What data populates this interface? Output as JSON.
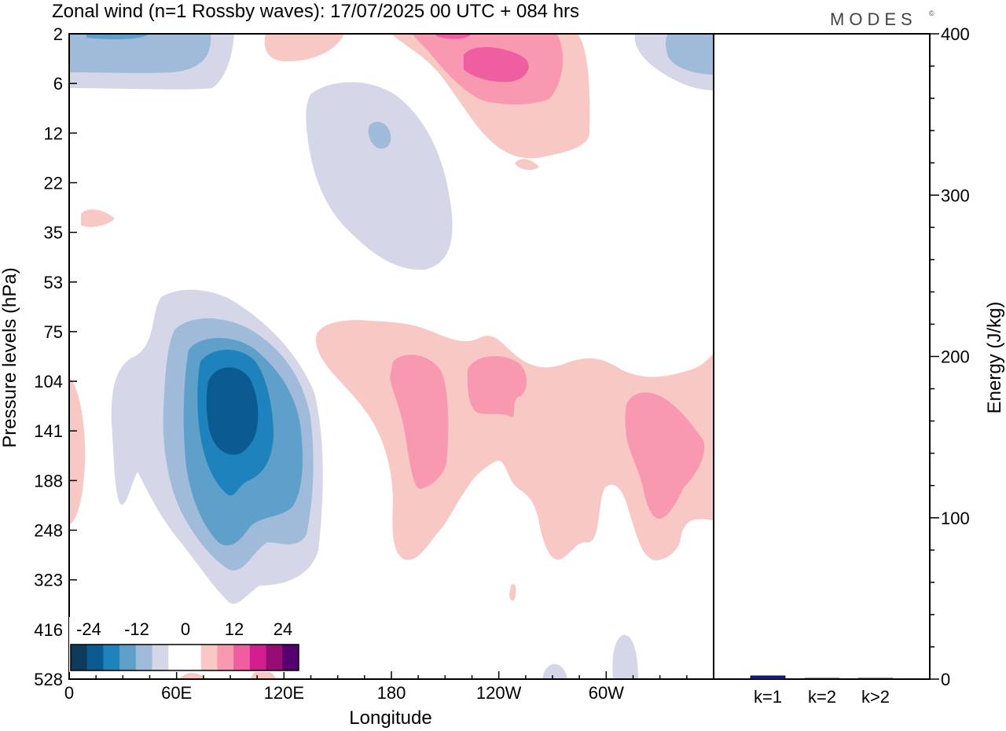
{
  "title": "Zonal wind (n=1 Rossby waves):  17/07/2025  00 UTC  + 084 hrs",
  "brand": "MODES",
  "brand_mark": "©",
  "chart_data": [
    {
      "type": "heatmap",
      "xlabel": "Longitude",
      "ylabel": "Pressure levels (hPa)",
      "x_ticks": [
        "0",
        "60E",
        "120E",
        "180",
        "120W",
        "60W"
      ],
      "y_ticks": [
        "2",
        "6",
        "12",
        "22",
        "35",
        "53",
        "75",
        "104",
        "141",
        "188",
        "248",
        "323",
        "416",
        "528"
      ],
      "grid": false,
      "colorbar": {
        "tick_labels": [
          "-24",
          "-12",
          "0",
          "12",
          "24"
        ],
        "colors": [
          "#0d3b5c",
          "#0b5a91",
          "#1e82bd",
          "#5fa0cb",
          "#a0bad9",
          "#d5d7e8",
          "#ffffff",
          "#ffffff",
          "#f8c8c4",
          "#f899b1",
          "#ef5ea0",
          "#d21e8f",
          "#960d76",
          "#560070"
        ],
        "placement": "bottom-left"
      }
    },
    {
      "type": "bar",
      "categories": [
        "k=1",
        "k=2",
        "k>2"
      ],
      "values": [
        2,
        0.5,
        0.5
      ],
      "ylabel": "Energy (J/kg)",
      "y_ticks": [
        "0",
        "100",
        "200",
        "300",
        "400"
      ],
      "ylim": [
        0,
        400
      ],
      "bar_color": "#1a1a8c"
    }
  ]
}
